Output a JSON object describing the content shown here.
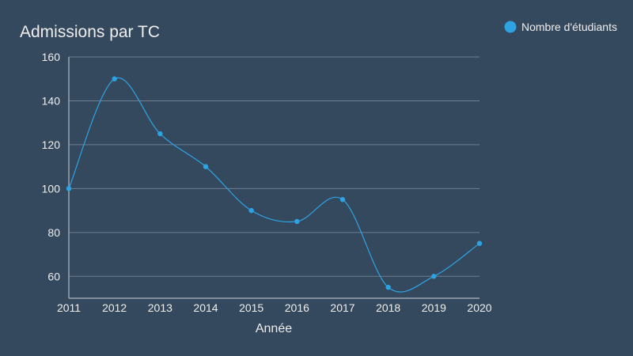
{
  "colors": {
    "background": "#34495e",
    "series": "#2ea3e3",
    "grid": "#6d7f90",
    "axis": "#9aa6b2",
    "text": "#eeeeee"
  },
  "chart_data": {
    "type": "line",
    "title": "Admissions par TC",
    "xlabel": "Année",
    "ylabel": "",
    "categories": [
      "2011",
      "2012",
      "2013",
      "2014",
      "2015",
      "2016",
      "2017",
      "2018",
      "2019",
      "2020"
    ],
    "series": [
      {
        "name": "Nombre d'étudiants",
        "values": [
          100,
          150,
          125,
          110,
          90,
          85,
          95,
          55,
          60,
          75
        ]
      }
    ],
    "ylim": [
      50,
      160
    ],
    "yticks": [
      60,
      80,
      100,
      120,
      140,
      160
    ],
    "grid": true,
    "smooth": true,
    "legend": "top-right"
  }
}
